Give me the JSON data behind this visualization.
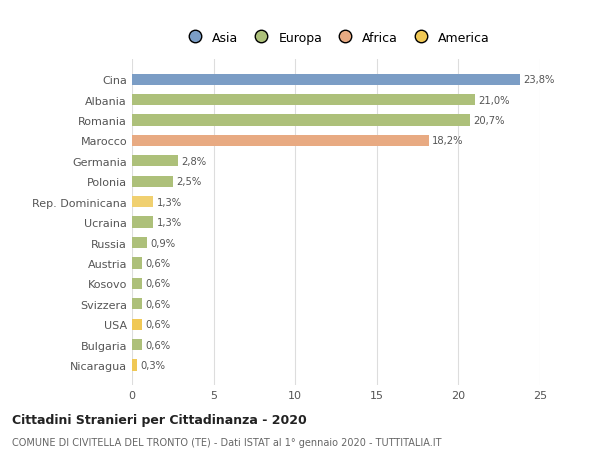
{
  "countries": [
    "Cina",
    "Albania",
    "Romania",
    "Marocco",
    "Germania",
    "Polonia",
    "Rep. Dominicana",
    "Ucraina",
    "Russia",
    "Austria",
    "Kosovo",
    "Svizzera",
    "USA",
    "Bulgaria",
    "Nicaragua"
  ],
  "values": [
    23.8,
    21.0,
    20.7,
    18.2,
    2.8,
    2.5,
    1.3,
    1.3,
    0.9,
    0.6,
    0.6,
    0.6,
    0.6,
    0.6,
    0.3
  ],
  "labels": [
    "23,8%",
    "21,0%",
    "20,7%",
    "18,2%",
    "2,8%",
    "2,5%",
    "1,3%",
    "1,3%",
    "0,9%",
    "0,6%",
    "0,6%",
    "0,6%",
    "0,6%",
    "0,6%",
    "0,3%"
  ],
  "colors": [
    "#7b9dc5",
    "#adc07a",
    "#adc07a",
    "#e8aa82",
    "#adc07a",
    "#adc07a",
    "#f0d070",
    "#adc07a",
    "#adc07a",
    "#adc07a",
    "#adc07a",
    "#adc07a",
    "#f0c855",
    "#adc07a",
    "#f0c855"
  ],
  "legend_labels": [
    "Asia",
    "Europa",
    "Africa",
    "America"
  ],
  "legend_colors": [
    "#7b9dc5",
    "#adc07a",
    "#e8aa82",
    "#f0c855"
  ],
  "title": "Cittadini Stranieri per Cittadinanza - 2020",
  "subtitle": "COMUNE DI CIVITELLA DEL TRONTO (TE) - Dati ISTAT al 1° gennaio 2020 - TUTTITALIA.IT",
  "xlim": [
    0,
    25
  ],
  "xticks": [
    0,
    5,
    10,
    15,
    20,
    25
  ],
  "background_color": "#ffffff",
  "bar_height": 0.55
}
